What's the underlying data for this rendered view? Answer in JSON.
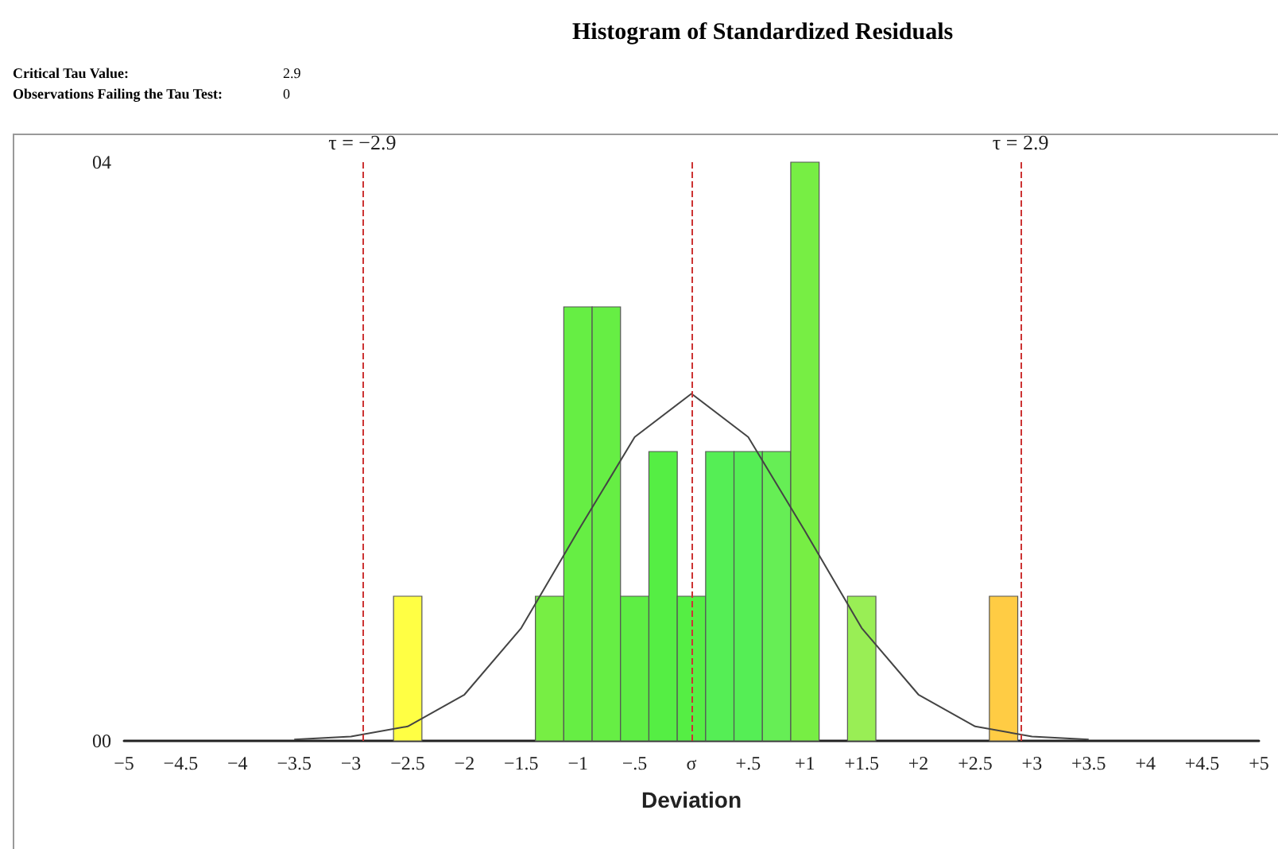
{
  "chart_data": {
    "type": "histogram",
    "title": "Histogram of Standardized Residuals",
    "xlabel": "Deviation",
    "annotations": [
      "Critical Tau Value:",
      "2.9",
      "Observations Failing the Tau Test:",
      "0"
    ],
    "bins": [
      -2.625,
      -2.375,
      -2.125,
      -1.875,
      -1.625,
      -1.375,
      -1.125,
      -0.875,
      -0.625,
      -0.375,
      -0.125,
      0.125,
      0.375,
      0.625,
      0.875,
      1.125,
      1.375,
      1.625,
      1.875,
      2.125,
      2.375,
      2.625,
      2.875
    ],
    "values": [
      1,
      0,
      0,
      0,
      0,
      1,
      3,
      3,
      1,
      2,
      1,
      2,
      2,
      2,
      4,
      0,
      1,
      0,
      0,
      0,
      0,
      1
    ],
    "colors": [
      "#ffff44",
      null,
      null,
      null,
      null,
      "#77ee44",
      "#66ee44",
      "#66ee44",
      "#5eee44",
      "#55ee44",
      "#55ee44",
      "#55ee55",
      "#55ee55",
      "#66ee55",
      "#77ee44",
      null,
      "#99ee55",
      null,
      null,
      null,
      null,
      "#ffcc44"
    ],
    "series": [
      {
        "type": "line",
        "color": "#444444",
        "x": [
          -3.5,
          -3,
          -2.5,
          -2,
          -1.5,
          -1,
          -0.5,
          0,
          0.5,
          1,
          1.5,
          2,
          2.5,
          3,
          3.5
        ],
        "values": [
          0.01,
          0.03,
          0.1,
          0.32,
          0.78,
          1.45,
          2.1,
          2.4,
          2.1,
          1.45,
          0.78,
          0.32,
          0.1,
          0.03,
          0.01
        ]
      }
    ],
    "marker": "none",
    "ref_lines": [
      {
        "axis": "x",
        "value": -2.9,
        "label": "τ = −2.9",
        "color": "#cc3333",
        "line_style": "dashed"
      },
      {
        "axis": "x",
        "value": 0,
        "label": null,
        "color": "#cc3333",
        "line_style": "dashed"
      },
      {
        "axis": "x",
        "value": 2.9,
        "label": "τ = 2.9",
        "color": "#cc3333",
        "line_style": "dashed"
      }
    ],
    "xlim": [
      -5,
      5
    ],
    "xticks": [
      {
        "value": -5,
        "label": "−5"
      },
      {
        "value": -4.5,
        "label": "−4.5"
      },
      {
        "value": -4,
        "label": "−4"
      },
      {
        "value": -3.5,
        "label": "−3.5"
      },
      {
        "value": -3,
        "label": "−3"
      },
      {
        "value": -2.5,
        "label": "−2.5"
      },
      {
        "value": -2,
        "label": "−2"
      },
      {
        "value": -1.5,
        "label": "−1.5"
      },
      {
        "value": -1,
        "label": "−1"
      },
      {
        "value": -0.5,
        "label": "−.5"
      },
      {
        "value": 0,
        "label": "σ"
      },
      {
        "value": 0.5,
        "label": "+.5"
      },
      {
        "value": 1,
        "label": "+1"
      },
      {
        "value": 1.5,
        "label": "+1.5"
      },
      {
        "value": 2,
        "label": "+2"
      },
      {
        "value": 2.5,
        "label": "+2.5"
      },
      {
        "value": 3,
        "label": "+3"
      },
      {
        "value": 3.5,
        "label": "+3.5"
      },
      {
        "value": 4,
        "label": "+4"
      },
      {
        "value": 4.5,
        "label": "+4.5"
      },
      {
        "value": 5,
        "label": "+5"
      }
    ],
    "ylim": [
      0,
      4
    ],
    "yticks": [
      {
        "value": 0,
        "label": "00"
      },
      {
        "value": 4,
        "label": "04"
      }
    ],
    "grid": false
  }
}
